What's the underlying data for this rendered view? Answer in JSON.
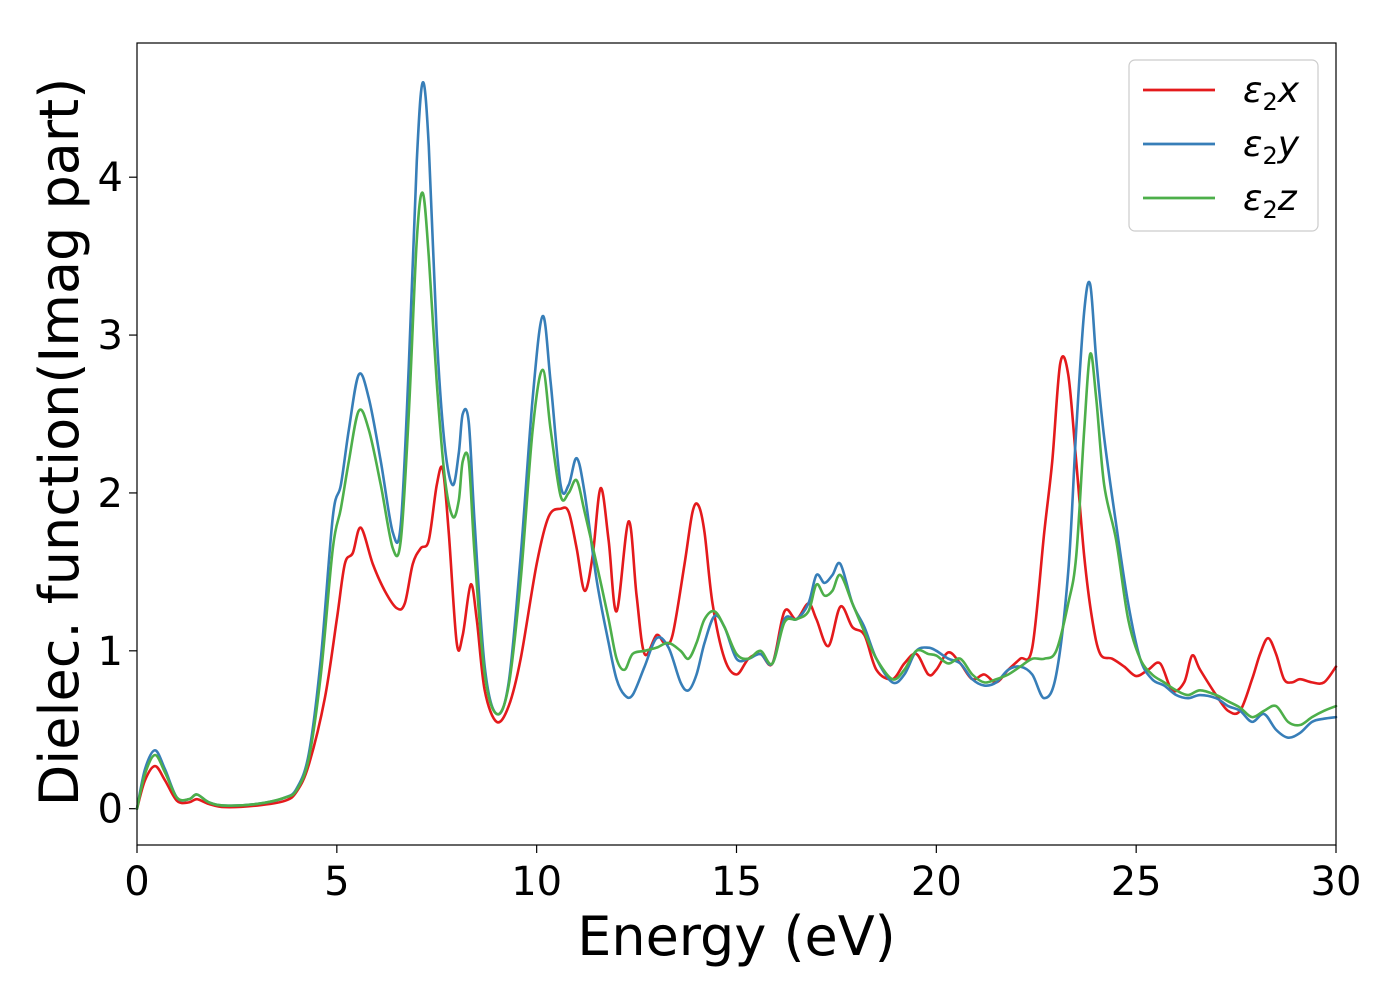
{
  "chart_data": {
    "type": "line",
    "xlabel": "Energy (eV)",
    "ylabel": "Dielec. function(Imag part)",
    "xlim": [
      0,
      30
    ],
    "ylim": [
      -0.23,
      4.85
    ],
    "xticks": [
      0,
      5,
      10,
      15,
      20,
      25,
      30
    ],
    "yticks": [
      0,
      1,
      2,
      3,
      4
    ],
    "grid": false,
    "legend_position": "top-right",
    "series": [
      {
        "name": "ε2x",
        "name_base": "ε",
        "name_sub": "2",
        "name_suffix": "x",
        "color": "#e41a1c",
        "x": [
          0,
          0.2,
          0.45,
          0.7,
          1.0,
          1.3,
          1.5,
          1.8,
          2.2,
          3.0,
          3.7,
          4.0,
          4.3,
          4.7,
          5.0,
          5.2,
          5.4,
          5.6,
          5.9,
          6.2,
          6.5,
          6.7,
          6.9,
          7.1,
          7.3,
          7.5,
          7.65,
          7.8,
          8.0,
          8.15,
          8.35,
          8.5,
          8.7,
          9.0,
          9.3,
          9.6,
          10.0,
          10.3,
          10.6,
          10.8,
          11.0,
          11.2,
          11.4,
          11.6,
          11.8,
          12.0,
          12.3,
          12.5,
          12.7,
          13.0,
          13.2,
          13.4,
          13.7,
          13.9,
          14.05,
          14.2,
          14.4,
          14.7,
          15.0,
          15.3,
          15.6,
          15.9,
          16.2,
          16.5,
          16.8,
          17.0,
          17.3,
          17.6,
          17.9,
          18.2,
          18.5,
          18.9,
          19.2,
          19.5,
          19.8,
          20.0,
          20.3,
          20.6,
          20.9,
          21.2,
          21.5,
          21.8,
          22.1,
          22.4,
          22.7,
          22.9,
          23.1,
          23.3,
          23.5,
          23.7,
          23.9,
          24.1,
          24.4,
          24.7,
          25.0,
          25.3,
          25.6,
          25.9,
          26.2,
          26.4,
          26.6,
          27.0,
          27.3,
          27.6,
          27.9,
          28.1,
          28.3,
          28.5,
          28.7,
          28.9,
          29.1,
          29.4,
          29.7,
          30.0
        ],
        "y": [
          0.0,
          0.18,
          0.27,
          0.18,
          0.05,
          0.04,
          0.06,
          0.03,
          0.01,
          0.02,
          0.05,
          0.11,
          0.28,
          0.7,
          1.2,
          1.55,
          1.62,
          1.78,
          1.55,
          1.38,
          1.27,
          1.3,
          1.55,
          1.65,
          1.7,
          2.05,
          2.15,
          1.75,
          1.05,
          1.1,
          1.42,
          1.2,
          0.75,
          0.55,
          0.65,
          0.95,
          1.55,
          1.85,
          1.9,
          1.88,
          1.65,
          1.38,
          1.6,
          2.03,
          1.7,
          1.25,
          1.82,
          1.35,
          0.98,
          1.1,
          1.05,
          1.1,
          1.55,
          1.88,
          1.92,
          1.75,
          1.3,
          0.95,
          0.85,
          0.95,
          0.98,
          0.92,
          1.25,
          1.2,
          1.3,
          1.2,
          1.03,
          1.28,
          1.15,
          1.1,
          0.88,
          0.82,
          0.92,
          0.98,
          0.85,
          0.88,
          0.99,
          0.92,
          0.82,
          0.85,
          0.8,
          0.88,
          0.95,
          1.02,
          1.75,
          2.2,
          2.82,
          2.75,
          2.2,
          1.6,
          1.2,
          0.98,
          0.95,
          0.9,
          0.84,
          0.88,
          0.92,
          0.75,
          0.8,
          0.97,
          0.88,
          0.72,
          0.62,
          0.62,
          0.82,
          0.98,
          1.08,
          0.98,
          0.82,
          0.8,
          0.82,
          0.8,
          0.8,
          0.9
        ]
      },
      {
        "name": "ε2y",
        "name_base": "ε",
        "name_sub": "2",
        "name_suffix": "y",
        "color": "#377eb8",
        "x": [
          0,
          0.2,
          0.45,
          0.7,
          1.0,
          1.3,
          1.5,
          1.8,
          2.2,
          3.0,
          3.7,
          4.0,
          4.3,
          4.6,
          4.9,
          5.1,
          5.3,
          5.55,
          5.8,
          6.1,
          6.4,
          6.6,
          6.8,
          7.0,
          7.15,
          7.3,
          7.5,
          7.7,
          7.9,
          8.05,
          8.15,
          8.3,
          8.45,
          8.7,
          9.0,
          9.3,
          9.6,
          9.9,
          10.15,
          10.35,
          10.6,
          10.8,
          11.0,
          11.2,
          11.5,
          11.8,
          12.0,
          12.2,
          12.4,
          12.7,
          13.0,
          13.3,
          13.6,
          13.8,
          14.0,
          14.2,
          14.45,
          14.7,
          15.0,
          15.3,
          15.6,
          15.9,
          16.2,
          16.5,
          16.8,
          17.0,
          17.2,
          17.4,
          17.6,
          17.9,
          18.2,
          18.5,
          18.9,
          19.2,
          19.5,
          19.8,
          20.0,
          20.3,
          20.6,
          20.9,
          21.2,
          21.5,
          21.8,
          22.1,
          22.4,
          22.7,
          23.0,
          23.3,
          23.5,
          23.7,
          23.85,
          24.0,
          24.2,
          24.5,
          24.8,
          25.1,
          25.4,
          25.7,
          26.0,
          26.3,
          26.6,
          27.0,
          27.3,
          27.6,
          27.9,
          28.2,
          28.5,
          28.8,
          29.1,
          29.4,
          29.7,
          30.0
        ],
        "y": [
          0.0,
          0.25,
          0.37,
          0.25,
          0.07,
          0.06,
          0.09,
          0.04,
          0.02,
          0.03,
          0.07,
          0.13,
          0.35,
          0.95,
          1.85,
          2.05,
          2.4,
          2.75,
          2.6,
          2.2,
          1.75,
          1.8,
          2.8,
          4.1,
          4.6,
          4.2,
          3.0,
          2.3,
          2.05,
          2.25,
          2.5,
          2.45,
          1.8,
          0.9,
          0.6,
          0.8,
          1.6,
          2.6,
          3.12,
          2.7,
          2.05,
          2.05,
          2.22,
          2.0,
          1.45,
          1.05,
          0.82,
          0.72,
          0.72,
          0.9,
          1.08,
          1.02,
          0.8,
          0.75,
          0.85,
          1.05,
          1.22,
          1.15,
          0.95,
          0.95,
          0.98,
          0.92,
          1.2,
          1.2,
          1.3,
          1.48,
          1.43,
          1.48,
          1.55,
          1.3,
          1.15,
          0.95,
          0.8,
          0.85,
          1.0,
          1.02,
          1.0,
          0.95,
          0.92,
          0.82,
          0.78,
          0.8,
          0.88,
          0.9,
          0.85,
          0.7,
          0.85,
          1.5,
          2.4,
          3.15,
          3.32,
          2.85,
          2.35,
          1.8,
          1.3,
          0.95,
          0.82,
          0.78,
          0.72,
          0.7,
          0.72,
          0.7,
          0.65,
          0.62,
          0.55,
          0.6,
          0.5,
          0.45,
          0.48,
          0.55,
          0.57,
          0.58
        ]
      },
      {
        "name": "ε2z",
        "name_base": "ε",
        "name_sub": "2",
        "name_suffix": "z",
        "color": "#4daf4a",
        "x": [
          0,
          0.2,
          0.45,
          0.7,
          1.0,
          1.3,
          1.5,
          1.8,
          2.2,
          3.0,
          3.7,
          4.0,
          4.3,
          4.6,
          4.9,
          5.1,
          5.3,
          5.55,
          5.8,
          6.1,
          6.4,
          6.6,
          6.8,
          7.0,
          7.15,
          7.3,
          7.5,
          7.7,
          7.9,
          8.05,
          8.15,
          8.3,
          8.45,
          8.7,
          9.0,
          9.3,
          9.6,
          9.9,
          10.15,
          10.35,
          10.6,
          10.8,
          11.0,
          11.2,
          11.5,
          11.8,
          12.0,
          12.2,
          12.4,
          12.7,
          13.0,
          13.3,
          13.6,
          13.8,
          14.0,
          14.2,
          14.45,
          14.7,
          15.0,
          15.3,
          15.6,
          15.9,
          16.2,
          16.5,
          16.8,
          17.0,
          17.2,
          17.4,
          17.6,
          17.9,
          18.2,
          18.5,
          18.9,
          19.2,
          19.5,
          19.8,
          20.0,
          20.3,
          20.6,
          20.9,
          21.2,
          21.5,
          21.8,
          22.1,
          22.4,
          22.7,
          23.0,
          23.3,
          23.5,
          23.7,
          23.85,
          24.0,
          24.2,
          24.5,
          24.8,
          25.1,
          25.4,
          25.7,
          26.0,
          26.3,
          26.6,
          27.0,
          27.3,
          27.6,
          27.9,
          28.2,
          28.5,
          28.8,
          29.1,
          29.4,
          29.7,
          30.0
        ],
        "y": [
          0.0,
          0.22,
          0.34,
          0.23,
          0.07,
          0.06,
          0.09,
          0.04,
          0.02,
          0.03,
          0.07,
          0.12,
          0.32,
          0.85,
          1.65,
          1.9,
          2.2,
          2.52,
          2.4,
          2.05,
          1.65,
          1.7,
          2.5,
          3.6,
          3.9,
          3.5,
          2.7,
          2.1,
          1.85,
          1.95,
          2.2,
          2.2,
          1.6,
          0.85,
          0.6,
          0.78,
          1.45,
          2.4,
          2.78,
          2.4,
          1.98,
          2.0,
          2.08,
          1.88,
          1.55,
          1.2,
          0.95,
          0.88,
          0.98,
          1.0,
          1.02,
          1.05,
          1.0,
          0.95,
          1.05,
          1.2,
          1.25,
          1.15,
          0.98,
          0.95,
          1.0,
          0.92,
          1.18,
          1.2,
          1.25,
          1.42,
          1.35,
          1.38,
          1.48,
          1.3,
          1.12,
          0.95,
          0.82,
          0.88,
          1.0,
          0.98,
          0.97,
          0.92,
          0.95,
          0.85,
          0.8,
          0.82,
          0.85,
          0.9,
          0.95,
          0.95,
          1.0,
          1.3,
          1.6,
          2.4,
          2.88,
          2.6,
          2.05,
          1.7,
          1.2,
          0.95,
          0.85,
          0.8,
          0.75,
          0.72,
          0.75,
          0.72,
          0.68,
          0.64,
          0.58,
          0.62,
          0.65,
          0.55,
          0.53,
          0.58,
          0.62,
          0.65
        ]
      }
    ]
  }
}
